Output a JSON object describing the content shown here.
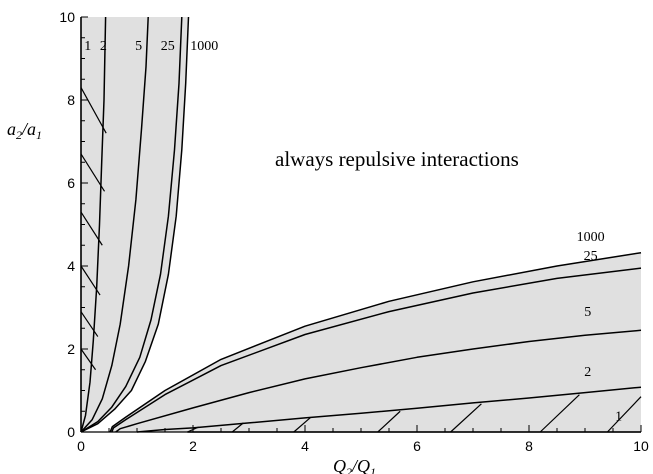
{
  "chart_data": {
    "type": "line",
    "title": "",
    "xlabel": {
      "main": "Q",
      "sub": "2",
      "sep": "/",
      "main2": "Q",
      "sub2": "1"
    },
    "ylabel": {
      "main": "a",
      "sub": "2",
      "sep": "/",
      "main2": "a",
      "sub2": "1"
    },
    "xlim": [
      0,
      10
    ],
    "ylim": [
      0,
      10
    ],
    "xticks": [
      0,
      2,
      4,
      6,
      8,
      10
    ],
    "yticks": [
      0,
      2,
      4,
      6,
      8,
      10
    ],
    "grid": false,
    "annotation": "always repulsive interactions",
    "shaded_color": "#e0e0e0",
    "line_color": "#000000",
    "upper_family": [
      {
        "name": "1",
        "points": [
          [
            0.0,
            0.0
          ],
          [
            0.0,
            10.0
          ]
        ]
      },
      {
        "name": "2",
        "points": [
          [
            0.0,
            0.0
          ],
          [
            0.08,
            0.4
          ],
          [
            0.16,
            1.2
          ],
          [
            0.22,
            2.2
          ],
          [
            0.28,
            3.5
          ],
          [
            0.33,
            5.0
          ],
          [
            0.37,
            6.5
          ],
          [
            0.41,
            8.0
          ],
          [
            0.44,
            10.0
          ]
        ]
      },
      {
        "name": "5",
        "points": [
          [
            0.0,
            0.0
          ],
          [
            0.2,
            0.3
          ],
          [
            0.38,
            0.8
          ],
          [
            0.55,
            1.6
          ],
          [
            0.7,
            2.6
          ],
          [
            0.85,
            4.0
          ],
          [
            0.98,
            5.6
          ],
          [
            1.08,
            7.3
          ],
          [
            1.16,
            8.8
          ],
          [
            1.2,
            10.0
          ]
        ]
      },
      {
        "name": "25",
        "points": [
          [
            0.0,
            0.0
          ],
          [
            0.3,
            0.25
          ],
          [
            0.55,
            0.6
          ],
          [
            0.8,
            1.1
          ],
          [
            1.05,
            1.8
          ],
          [
            1.25,
            2.7
          ],
          [
            1.42,
            3.8
          ],
          [
            1.56,
            5.2
          ],
          [
            1.67,
            6.8
          ],
          [
            1.75,
            8.4
          ],
          [
            1.8,
            10.0
          ]
        ]
      },
      {
        "name": "1000",
        "points": [
          [
            0.0,
            0.0
          ],
          [
            0.3,
            0.2
          ],
          [
            0.6,
            0.55
          ],
          [
            0.9,
            1.0
          ],
          [
            1.15,
            1.7
          ],
          [
            1.38,
            2.6
          ],
          [
            1.56,
            3.8
          ],
          [
            1.7,
            5.2
          ],
          [
            1.8,
            6.8
          ],
          [
            1.87,
            8.4
          ],
          [
            1.92,
            10.0
          ]
        ]
      }
    ],
    "lower_family": [
      {
        "name": "1",
        "points": [
          [
            10.0,
            0.0
          ],
          [
            1.9,
            0.0
          ]
        ]
      },
      {
        "name": "2",
        "points": [
          [
            1.0,
            0.0
          ],
          [
            1.5,
            0.06
          ],
          [
            2.0,
            0.1
          ],
          [
            3.0,
            0.22
          ],
          [
            4.0,
            0.34
          ],
          [
            5.0,
            0.45
          ],
          [
            6.0,
            0.57
          ],
          [
            7.0,
            0.7
          ],
          [
            8.0,
            0.82
          ],
          [
            9.0,
            0.95
          ],
          [
            10.0,
            1.08
          ]
        ]
      },
      {
        "name": "5",
        "points": [
          [
            0.62,
            0.0
          ],
          [
            0.7,
            0.08
          ],
          [
            1.0,
            0.2
          ],
          [
            2.0,
            0.58
          ],
          [
            3.0,
            0.95
          ],
          [
            4.0,
            1.28
          ],
          [
            5.0,
            1.55
          ],
          [
            6.0,
            1.8
          ],
          [
            7.0,
            2.0
          ],
          [
            8.0,
            2.18
          ],
          [
            9.0,
            2.33
          ],
          [
            10.0,
            2.45
          ]
        ]
      },
      {
        "name": "25",
        "points": [
          [
            0.55,
            0.0
          ],
          [
            0.58,
            0.1
          ],
          [
            0.8,
            0.3
          ],
          [
            1.5,
            0.9
          ],
          [
            2.5,
            1.6
          ],
          [
            4.0,
            2.35
          ],
          [
            5.5,
            2.9
          ],
          [
            7.0,
            3.35
          ],
          [
            8.5,
            3.7
          ],
          [
            10.0,
            3.95
          ]
        ]
      },
      {
        "name": "1000",
        "points": [
          [
            0.52,
            0.0
          ],
          [
            0.56,
            0.13
          ],
          [
            0.8,
            0.36
          ],
          [
            1.5,
            1.0
          ],
          [
            2.5,
            1.75
          ],
          [
            4.0,
            2.55
          ],
          [
            5.5,
            3.15
          ],
          [
            7.0,
            3.62
          ],
          [
            8.5,
            4.0
          ],
          [
            10.0,
            4.32
          ]
        ]
      }
    ],
    "hatch_upper": [
      [
        [
          0.0,
          8.3
        ],
        [
          0.45,
          7.2
        ]
      ],
      [
        [
          0.0,
          6.7
        ],
        [
          0.42,
          5.8
        ]
      ],
      [
        [
          0.0,
          5.3
        ],
        [
          0.38,
          4.5
        ]
      ],
      [
        [
          0.0,
          4.0
        ],
        [
          0.34,
          3.3
        ]
      ],
      [
        [
          0.0,
          2.9
        ],
        [
          0.3,
          2.3
        ]
      ],
      [
        [
          0.0,
          2.0
        ],
        [
          0.26,
          1.5
        ]
      ]
    ],
    "hatch_lower": [
      [
        [
          1.9,
          0.0
        ],
        [
          2.1,
          0.12
        ]
      ],
      [
        [
          2.7,
          0.0
        ],
        [
          2.9,
          0.22
        ]
      ],
      [
        [
          3.8,
          0.0
        ],
        [
          4.1,
          0.35
        ]
      ],
      [
        [
          5.3,
          0.0
        ],
        [
          5.7,
          0.5
        ]
      ],
      [
        [
          6.6,
          0.0
        ],
        [
          7.15,
          0.68
        ]
      ],
      [
        [
          8.2,
          0.0
        ],
        [
          8.9,
          0.9
        ]
      ],
      [
        [
          9.4,
          0.0
        ],
        [
          10.0,
          0.85
        ]
      ]
    ],
    "curve_labels": [
      {
        "text": "1",
        "x": 0.12,
        "y": 9.2
      },
      {
        "text": "2",
        "x": 0.4,
        "y": 9.2
      },
      {
        "text": "5",
        "x": 1.03,
        "y": 9.2
      },
      {
        "text": "25",
        "x": 1.55,
        "y": 9.2
      },
      {
        "text": "1000",
        "x": 2.2,
        "y": 9.2
      },
      {
        "text": "1000",
        "x": 9.1,
        "y": 4.6
      },
      {
        "text": "25",
        "x": 9.1,
        "y": 4.15
      },
      {
        "text": "5",
        "x": 9.05,
        "y": 2.8
      },
      {
        "text": "2",
        "x": 9.05,
        "y": 1.35
      },
      {
        "text": "1",
        "x": 9.6,
        "y": 0.28
      }
    ]
  }
}
